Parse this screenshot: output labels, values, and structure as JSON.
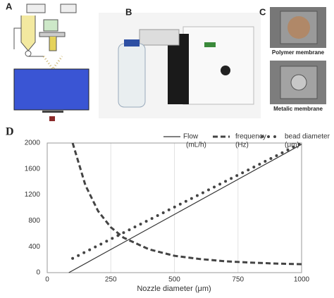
{
  "panels": {
    "a": "A",
    "b": "B",
    "c": "C",
    "d": "D",
    "polymer": "Polymer membrane",
    "metalic": "Metalic membrane"
  },
  "chart_data": {
    "type": "line",
    "xlabel": "Nozzle diameter (μm)",
    "xlim": [
      0,
      1000
    ],
    "xticks": [
      0,
      250,
      500,
      750,
      1000
    ],
    "ylim": [
      0,
      2000
    ],
    "yticks": [
      0,
      400,
      800,
      1200,
      1600,
      2000
    ],
    "grid": "x",
    "series": [
      {
        "name": "Flow",
        "unit": "(mL/h)",
        "color": "#333333",
        "style": "solid",
        "x": [
          85,
          250,
          500,
          750,
          1000
        ],
        "values": [
          0,
          357,
          898,
          1439,
          1980
        ]
      },
      {
        "name": "frequency",
        "unit": "(Hz)",
        "color": "#444444",
        "style": "dashed",
        "x": [
          100,
          150,
          200,
          250,
          300,
          400,
          500,
          600,
          700,
          800,
          900,
          1000
        ],
        "values": [
          2000,
          1350,
          950,
          700,
          540,
          360,
          260,
          210,
          175,
          155,
          140,
          130
        ]
      },
      {
        "name": "bead diameter",
        "unit": "(μm)",
        "color": "#444444",
        "style": "dotted",
        "x": [
          100,
          150,
          200,
          250,
          300,
          350,
          400,
          450,
          500,
          550,
          600,
          650,
          700,
          750,
          800,
          850,
          900,
          950,
          1000
        ],
        "values": [
          220,
          319,
          418,
          517,
          616,
          715,
          813,
          912,
          1011,
          1110,
          1209,
          1308,
          1407,
          1506,
          1604,
          1703,
          1802,
          1901,
          2000
        ]
      }
    ]
  }
}
